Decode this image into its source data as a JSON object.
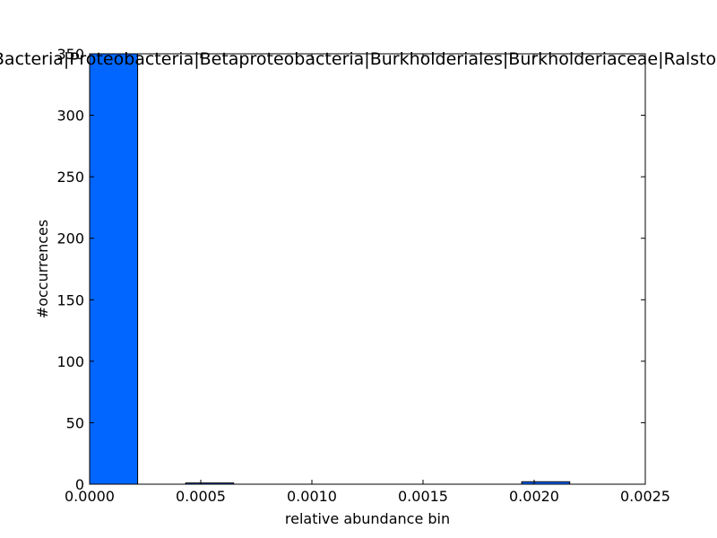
{
  "chart_data": {
    "type": "bar",
    "title": "Bacteria|Proteobacteria|Betaproteobacteria|Burkholderiales|Burkholderiaceae|Ralstonia",
    "xlabel": "relative abundance bin",
    "ylabel": "#occurrences",
    "xlim": [
      0.0,
      0.0025
    ],
    "ylim": [
      0,
      350
    ],
    "xticks": [
      0.0,
      0.0005,
      0.001,
      0.0015,
      0.002,
      0.0025
    ],
    "xtick_labels": [
      "0.0000",
      "0.0005",
      "0.0010",
      "0.0015",
      "0.0020",
      "0.0025"
    ],
    "yticks": [
      0,
      50,
      100,
      150,
      200,
      250,
      300,
      350
    ],
    "ytick_labels": [
      "0",
      "50",
      "100",
      "150",
      "200",
      "250",
      "300",
      "350"
    ],
    "grid": false,
    "bar_color": "#0066ff",
    "bins": [
      {
        "start": 0.0,
        "end": 0.000216,
        "count": 350
      },
      {
        "start": 0.000432,
        "end": 0.000648,
        "count": 1
      },
      {
        "start": 0.001944,
        "end": 0.00216,
        "count": 2
      }
    ]
  }
}
